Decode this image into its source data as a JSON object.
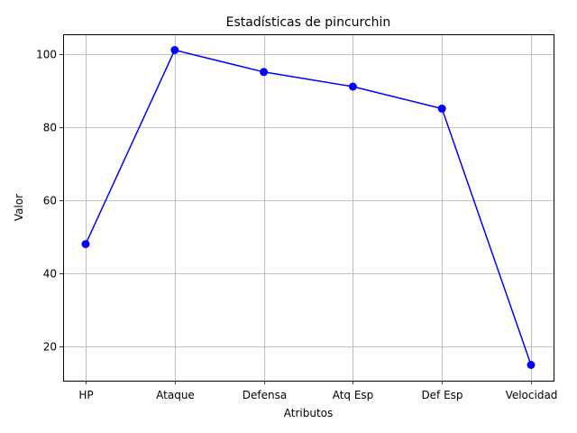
{
  "chart_data": {
    "type": "line",
    "title": "Estadísticas de pincurchin",
    "xlabel": "Atributos",
    "ylabel": "Valor",
    "categories": [
      "HP",
      "Ataque",
      "Defensa",
      "Atq Esp",
      "Def Esp",
      "Velocidad"
    ],
    "series": [
      {
        "values": [
          48,
          101,
          95,
          91,
          85,
          15
        ],
        "color": "#0000ff",
        "marker": "circle"
      }
    ],
    "ylim": [
      10.7,
      105.3
    ],
    "yticks": [
      20,
      40,
      60,
      80,
      100
    ],
    "grid": true,
    "legend": false
  }
}
